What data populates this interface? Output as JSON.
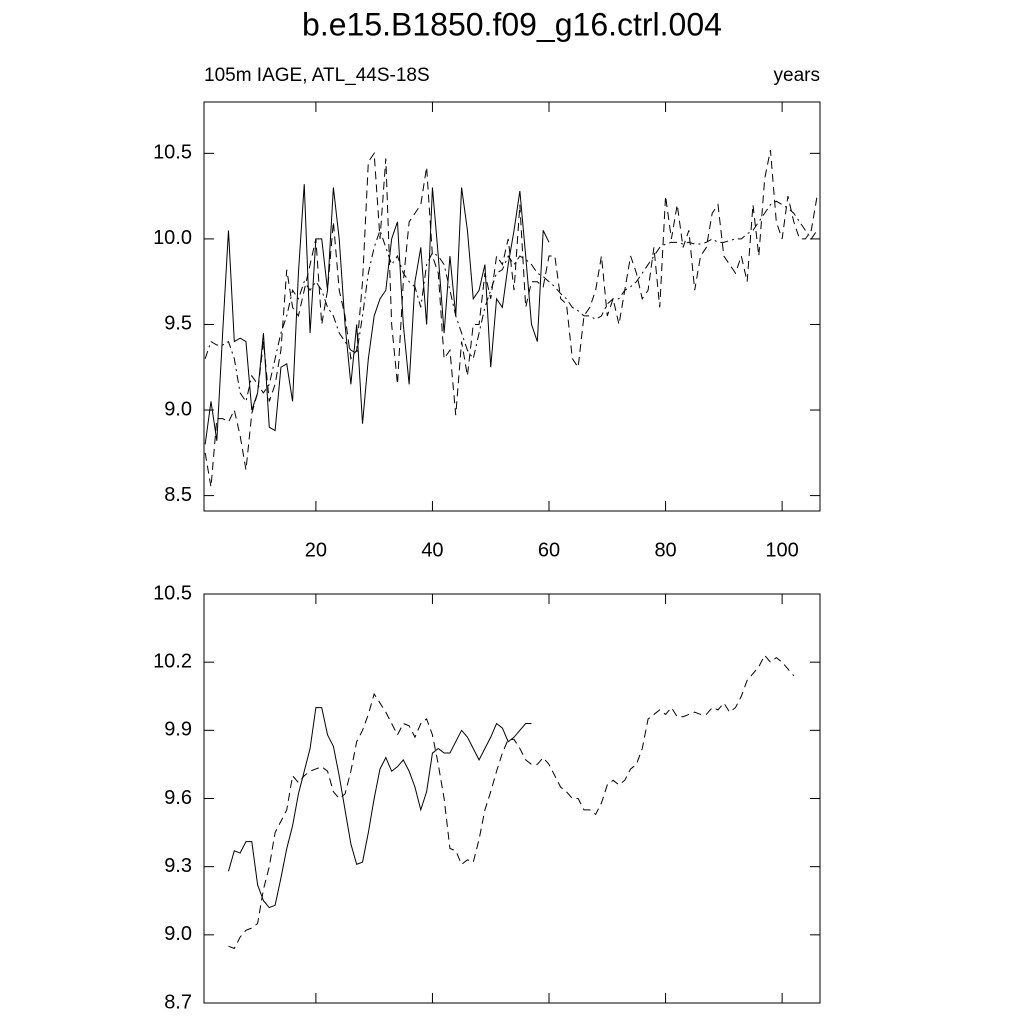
{
  "chart_data": [
    {
      "type": "line",
      "title": "b.e15.B1850.f09_g16.ctrl.004",
      "left_string": "105m IAGE, ATL_44S-18S",
      "right_string": "years",
      "x": [
        1,
        2,
        3,
        4,
        5,
        6,
        7,
        8,
        9,
        10,
        11,
        12,
        13,
        14,
        15,
        16,
        17,
        18,
        19,
        20,
        21,
        22,
        23,
        24,
        25,
        26,
        27,
        28,
        29,
        30,
        31,
        32,
        33,
        34,
        35,
        36,
        37,
        38,
        39,
        40,
        41,
        42,
        43,
        44,
        45,
        46,
        47,
        48,
        49,
        50,
        51,
        52,
        53,
        54,
        55,
        56,
        57,
        58,
        59,
        60,
        61,
        62,
        63,
        64,
        65,
        66,
        67,
        68,
        69,
        70,
        71,
        72,
        73,
        74,
        75,
        76,
        77,
        78,
        79,
        80,
        81,
        82,
        83,
        84,
        85,
        86,
        87,
        88,
        89,
        90,
        91,
        92,
        93,
        94,
        95,
        96,
        97,
        98,
        99,
        100,
        101,
        102,
        103,
        104,
        105,
        106
      ],
      "xlim": [
        0.8,
        106.5
      ],
      "xticks": [
        20,
        40,
        60,
        80,
        100
      ],
      "show_xtick_labels": true,
      "ylim": [
        8.41,
        10.8
      ],
      "yticks": [
        {
          "value": 8.5,
          "label": "8.5"
        },
        {
          "value": 9,
          "label": "9.0"
        },
        {
          "value": 9.5,
          "label": "9.5"
        },
        {
          "value": 10,
          "label": "10.0"
        },
        {
          "value": 10.5,
          "label": "10.5"
        }
      ],
      "series": [
        {
          "color": "#000000",
          "dash": "solid",
          "values": [
            8.8,
            9.05,
            8.82,
            9.45,
            10.05,
            9.4,
            9.42,
            9.4,
            9.0,
            9.1,
            9.45,
            8.9,
            8.88,
            9.25,
            9.27,
            9.05,
            9.8,
            10.32,
            9.45,
            10.0,
            10.0,
            9.7,
            10.3,
            10.0,
            9.5,
            9.15,
            9.5,
            8.92,
            9.3,
            9.55,
            9.65,
            9.7,
            10.0,
            10.1,
            9.5,
            9.15,
            9.75,
            9.95,
            9.5,
            10.3,
            9.9,
            9.45,
            9.9,
            9.55,
            10.3,
            10.05,
            9.65,
            9.7,
            9.85,
            9.25,
            9.65,
            9.6,
            9.85,
            10.05,
            10.28,
            9.9,
            9.5,
            9.4,
            10.05,
            9.98,
            null,
            null,
            null,
            null,
            null,
            null,
            null,
            null,
            null,
            null,
            null,
            null,
            null,
            null,
            null,
            null,
            null,
            null,
            null,
            null,
            null,
            null,
            null,
            null,
            null,
            null,
            null,
            null,
            null,
            null,
            null,
            null,
            null,
            null,
            null,
            null,
            null,
            null,
            null,
            null,
            null,
            null,
            null,
            null,
            null,
            null
          ]
        },
        {
          "color": "#000000",
          "dash": "dashed",
          "values": [
            8.75,
            8.55,
            8.95,
            8.95,
            8.93,
            9.0,
            8.85,
            8.65,
            8.98,
            9.1,
            9.4,
            9.05,
            9.15,
            9.35,
            9.82,
            9.6,
            9.55,
            9.7,
            9.85,
            10.0,
            9.5,
            9.7,
            10.1,
            9.7,
            9.55,
            9.3,
            9.35,
            9.75,
            10.45,
            10.5,
            10.0,
            10.47,
            9.5,
            9.15,
            9.75,
            10.1,
            10.15,
            10.2,
            10.42,
            9.9,
            9.8,
            9.3,
            9.35,
            8.97,
            9.4,
            9.2,
            9.5,
            9.5,
            9.8,
            9.65,
            9.9,
            9.85,
            10.0,
            9.7,
            10.2,
            9.6,
            9.75,
            9.75,
            9.72,
            9.9,
            9.9,
            9.65,
            9.62,
            9.3,
            9.25,
            9.55,
            9.6,
            9.7,
            9.9,
            9.55,
            9.65,
            9.5,
            9.7,
            9.9,
            9.8,
            9.65,
            9.7,
            9.95,
            9.6,
            10.25,
            10.0,
            10.2,
            9.95,
            10.05,
            9.7,
            9.9,
            9.95,
            10.15,
            10.2,
            9.9,
            9.85,
            9.8,
            9.9,
            9.75,
            10.2,
            9.9,
            10.35,
            10.52,
            10.1,
            10.0,
            10.25,
            10.1,
            10.0,
            10.0,
            10.05,
            10.25
          ]
        },
        {
          "color": "#000000",
          "dash": "dashdot",
          "values": [
            9.3,
            9.4,
            9.38,
            9.38,
            9.4,
            9.3,
            9.1,
            9.05,
            9.2,
            9.15,
            9.1,
            9.15,
            9.3,
            9.45,
            9.55,
            9.7,
            9.65,
            9.75,
            9.7,
            9.75,
            9.7,
            9.6,
            9.55,
            9.45,
            9.4,
            9.35,
            9.33,
            9.55,
            9.8,
            9.95,
            10.05,
            9.95,
            9.85,
            9.9,
            9.8,
            9.75,
            9.72,
            9.6,
            9.85,
            9.92,
            9.9,
            9.85,
            9.7,
            9.55,
            9.45,
            9.35,
            9.3,
            9.45,
            9.6,
            9.7,
            9.8,
            9.82,
            9.9,
            9.85,
            9.9,
            9.88,
            9.85,
            9.8,
            9.78,
            9.75,
            9.72,
            9.68,
            9.65,
            9.6,
            9.58,
            9.55,
            9.55,
            9.53,
            9.55,
            9.62,
            9.65,
            9.65,
            9.7,
            9.72,
            9.75,
            9.8,
            9.85,
            9.9,
            9.95,
            9.97,
            9.98,
            9.98,
            9.97,
            9.98,
            9.97,
            9.97,
            9.98,
            10.0,
            9.98,
            9.98,
            9.99,
            10.0,
            10.0,
            10.03,
            10.05,
            10.1,
            10.15,
            10.2,
            10.22,
            10.2,
            10.18,
            10.15,
            10.1,
            10.05,
            10.0,
            10.05
          ]
        }
      ]
    },
    {
      "type": "line",
      "x": [
        1,
        2,
        3,
        4,
        5,
        6,
        7,
        8,
        9,
        10,
        11,
        12,
        13,
        14,
        15,
        16,
        17,
        18,
        19,
        20,
        21,
        22,
        23,
        24,
        25,
        26,
        27,
        28,
        29,
        30,
        31,
        32,
        33,
        34,
        35,
        36,
        37,
        38,
        39,
        40,
        41,
        42,
        43,
        44,
        45,
        46,
        47,
        48,
        49,
        50,
        51,
        52,
        53,
        54,
        55,
        56,
        57,
        58,
        59,
        60,
        61,
        62,
        63,
        64,
        65,
        66,
        67,
        68,
        69,
        70,
        71,
        72,
        73,
        74,
        75,
        76,
        77,
        78,
        79,
        80,
        81,
        82,
        83,
        84,
        85,
        86,
        87,
        88,
        89,
        90,
        91,
        92,
        93,
        94,
        95,
        96,
        97,
        98,
        99,
        100,
        101,
        102,
        103,
        104,
        105,
        106
      ],
      "xlim": [
        0.8,
        106.5
      ],
      "xticks": [
        20,
        40,
        60,
        80,
        100
      ],
      "show_xtick_labels": false,
      "ylim": [
        8.7,
        10.5
      ],
      "yticks": [
        {
          "value": 8.7,
          "label": "8.7"
        },
        {
          "value": 9,
          "label": "9.0"
        },
        {
          "value": 9.3,
          "label": "9.3"
        },
        {
          "value": 9.6,
          "label": "9.6"
        },
        {
          "value": 9.9,
          "label": "9.9"
        },
        {
          "value": 10.2,
          "label": "10.2"
        },
        {
          "value": 10.5,
          "label": "10.5"
        }
      ],
      "series": [
        {
          "color": "#000000",
          "dash": "solid",
          "values": [
            null,
            null,
            null,
            null,
            9.28,
            9.37,
            9.36,
            9.41,
            9.41,
            9.22,
            9.15,
            9.12,
            9.13,
            9.25,
            9.38,
            9.48,
            9.62,
            9.72,
            9.82,
            10.0,
            10.0,
            9.88,
            9.83,
            9.7,
            9.55,
            9.4,
            9.31,
            9.32,
            9.45,
            9.6,
            9.73,
            9.78,
            9.72,
            9.74,
            9.77,
            9.72,
            9.65,
            9.55,
            9.63,
            9.8,
            9.82,
            9.8,
            9.8,
            9.85,
            9.9,
            9.87,
            9.82,
            9.77,
            9.82,
            9.87,
            9.93,
            9.91,
            9.85,
            9.87,
            9.9,
            9.93,
            9.93,
            null,
            null,
            null,
            null,
            null,
            null,
            null,
            null,
            null,
            null,
            null,
            null,
            null,
            null,
            null,
            null,
            null,
            null,
            null,
            null,
            null,
            null,
            null,
            null,
            null,
            null,
            null,
            null,
            null,
            null,
            null,
            null,
            null,
            null,
            null,
            null,
            null,
            null,
            null,
            null,
            null,
            null,
            null,
            null,
            null,
            null,
            null,
            null,
            null
          ]
        },
        {
          "color": "#000000",
          "dash": "dashed",
          "values": [
            null,
            null,
            null,
            null,
            8.95,
            8.94,
            8.99,
            9.02,
            9.03,
            9.05,
            9.2,
            9.3,
            9.45,
            9.5,
            9.55,
            9.7,
            9.67,
            9.7,
            9.72,
            9.73,
            9.74,
            9.72,
            9.63,
            9.6,
            9.62,
            9.72,
            9.85,
            9.9,
            9.97,
            10.06,
            10.02,
            9.98,
            9.93,
            9.88,
            9.93,
            9.92,
            9.87,
            9.93,
            9.95,
            9.88,
            9.75,
            9.6,
            9.38,
            9.37,
            9.31,
            9.33,
            9.32,
            9.42,
            9.55,
            9.63,
            9.72,
            9.8,
            9.86,
            9.86,
            9.82,
            9.77,
            9.75,
            9.75,
            9.78,
            9.75,
            9.7,
            9.65,
            9.63,
            9.6,
            9.6,
            9.55,
            9.55,
            9.53,
            9.58,
            9.66,
            9.68,
            9.66,
            9.68,
            9.73,
            9.75,
            9.82,
            9.95,
            9.97,
            9.99,
            9.97,
            10.0,
            9.96,
            9.96,
            9.97,
            9.98,
            9.97,
            9.97,
            10.0,
            9.99,
            10.02,
            9.98,
            10.0,
            10.05,
            10.12,
            10.15,
            10.18,
            10.23,
            10.2,
            10.22,
            10.2,
            10.17,
            10.14,
            null,
            null,
            null,
            null
          ]
        }
      ]
    }
  ]
}
